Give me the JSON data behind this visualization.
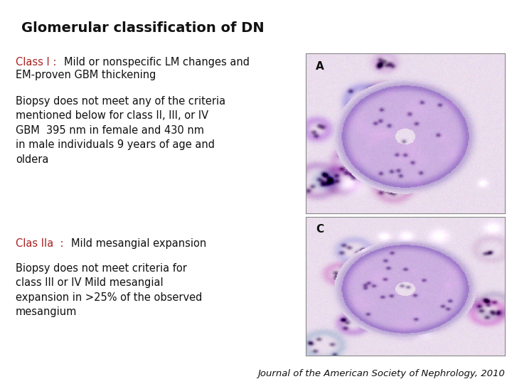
{
  "title": "Glomerular classification of DN",
  "title_fontsize": 14,
  "background_color": "#ffffff",
  "class1_label": "Class I : ",
  "class1_label_color": "#aa2222",
  "class1_rest": " Mild or nonspecific LM changes and\nEM-proven GBM thickening",
  "class1_text_color": "#111111",
  "biopsy1_text": "Biopsy does not meet any of the criteria\nmentioned below for class II, III, or IV\nGBM  395 nm in female and 430 nm\nin male individuals 9 years of age and\noldera",
  "biopsy1_color": "#111111",
  "class2_label": "Clas IIa  : ",
  "class2_label_color": "#aa2222",
  "class2_rest": " Mild mesangial expansion",
  "class2_text_color": "#111111",
  "biopsy2_text": "Biopsy does not meet criteria for\nclass III or IV Mild mesangial\nexpansion in >25% of the observed\nmesangium",
  "biopsy2_color": "#111111",
  "footer_text": "Journal of the American Society of Nephrology, 2010",
  "footer_color": "#111111",
  "text_fontsize": 10.5,
  "label_fontsize": 10.5,
  "footer_fontsize": 9.5
}
